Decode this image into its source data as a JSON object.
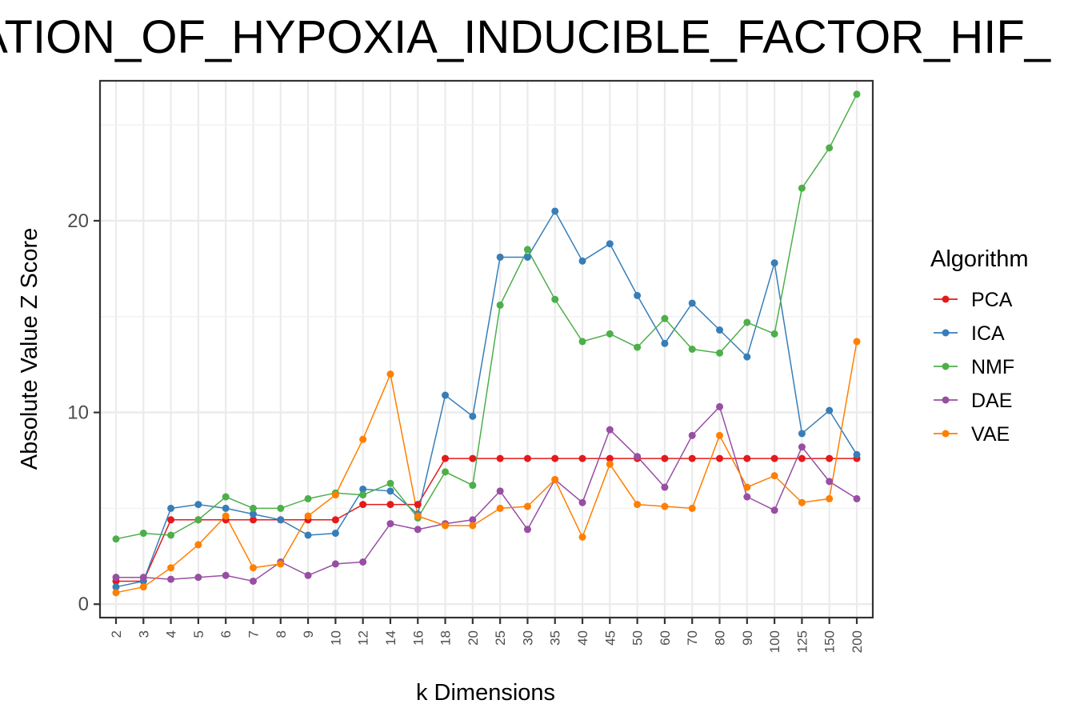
{
  "chart_data": {
    "type": "line",
    "title": "ULATION_OF_HYPOXIA_INDUCIBLE_FACTOR_HIF_",
    "xlabel": "k Dimensions",
    "ylabel": "Absolute Value Z Score",
    "categories": [
      "2",
      "3",
      "4",
      "5",
      "6",
      "7",
      "8",
      "9",
      "10",
      "12",
      "14",
      "16",
      "18",
      "20",
      "25",
      "30",
      "35",
      "40",
      "45",
      "50",
      "60",
      "70",
      "80",
      "90",
      "100",
      "125",
      "150",
      "200"
    ],
    "ylim": [
      -0.7,
      27.3
    ],
    "yticks": [
      0,
      10,
      20
    ],
    "grid": true,
    "legend": {
      "title": "Algorithm",
      "placement": "right"
    },
    "series": [
      {
        "name": "PCA",
        "color": "#e41a1c",
        "values": [
          1.2,
          1.2,
          4.4,
          4.4,
          4.4,
          4.4,
          4.4,
          4.4,
          4.4,
          5.2,
          5.2,
          5.2,
          7.6,
          7.6,
          7.6,
          7.6,
          7.6,
          7.6,
          7.6,
          7.6,
          7.6,
          7.6,
          7.6,
          7.6,
          7.6,
          7.6,
          7.6,
          7.6
        ]
      },
      {
        "name": "ICA",
        "color": "#377eb8",
        "values": [
          0.9,
          1.2,
          5.0,
          5.2,
          5.0,
          4.7,
          4.4,
          3.6,
          3.7,
          6.0,
          5.9,
          4.7,
          10.9,
          9.8,
          18.1,
          18.1,
          20.5,
          17.9,
          18.8,
          16.1,
          13.6,
          15.7,
          14.3,
          12.9,
          17.8,
          8.9,
          10.1,
          7.8
        ]
      },
      {
        "name": "NMF",
        "color": "#4daf4a",
        "values": [
          3.4,
          3.7,
          3.6,
          4.4,
          5.6,
          5.0,
          5.0,
          5.5,
          5.8,
          5.7,
          6.3,
          4.5,
          6.9,
          6.2,
          15.6,
          18.5,
          15.9,
          13.7,
          14.1,
          13.4,
          14.9,
          13.3,
          13.1,
          14.7,
          14.1,
          21.7,
          23.8,
          26.6
        ]
      },
      {
        "name": "DAE",
        "color": "#984ea3",
        "values": [
          1.4,
          1.4,
          1.3,
          1.4,
          1.5,
          1.2,
          2.2,
          1.5,
          2.1,
          2.2,
          4.2,
          3.9,
          4.2,
          4.4,
          5.9,
          3.9,
          6.5,
          5.3,
          9.1,
          7.7,
          6.1,
          8.8,
          10.3,
          5.6,
          4.9,
          8.2,
          6.4,
          5.5
        ]
      },
      {
        "name": "VAE",
        "color": "#ff7f00",
        "values": [
          0.6,
          0.9,
          1.9,
          3.1,
          4.6,
          1.9,
          2.1,
          4.6,
          5.7,
          8.6,
          12.0,
          4.6,
          4.1,
          4.1,
          5.0,
          5.1,
          6.5,
          3.5,
          7.3,
          5.2,
          5.1,
          5.0,
          8.8,
          6.1,
          6.7,
          5.3,
          5.5,
          13.7
        ]
      }
    ]
  }
}
